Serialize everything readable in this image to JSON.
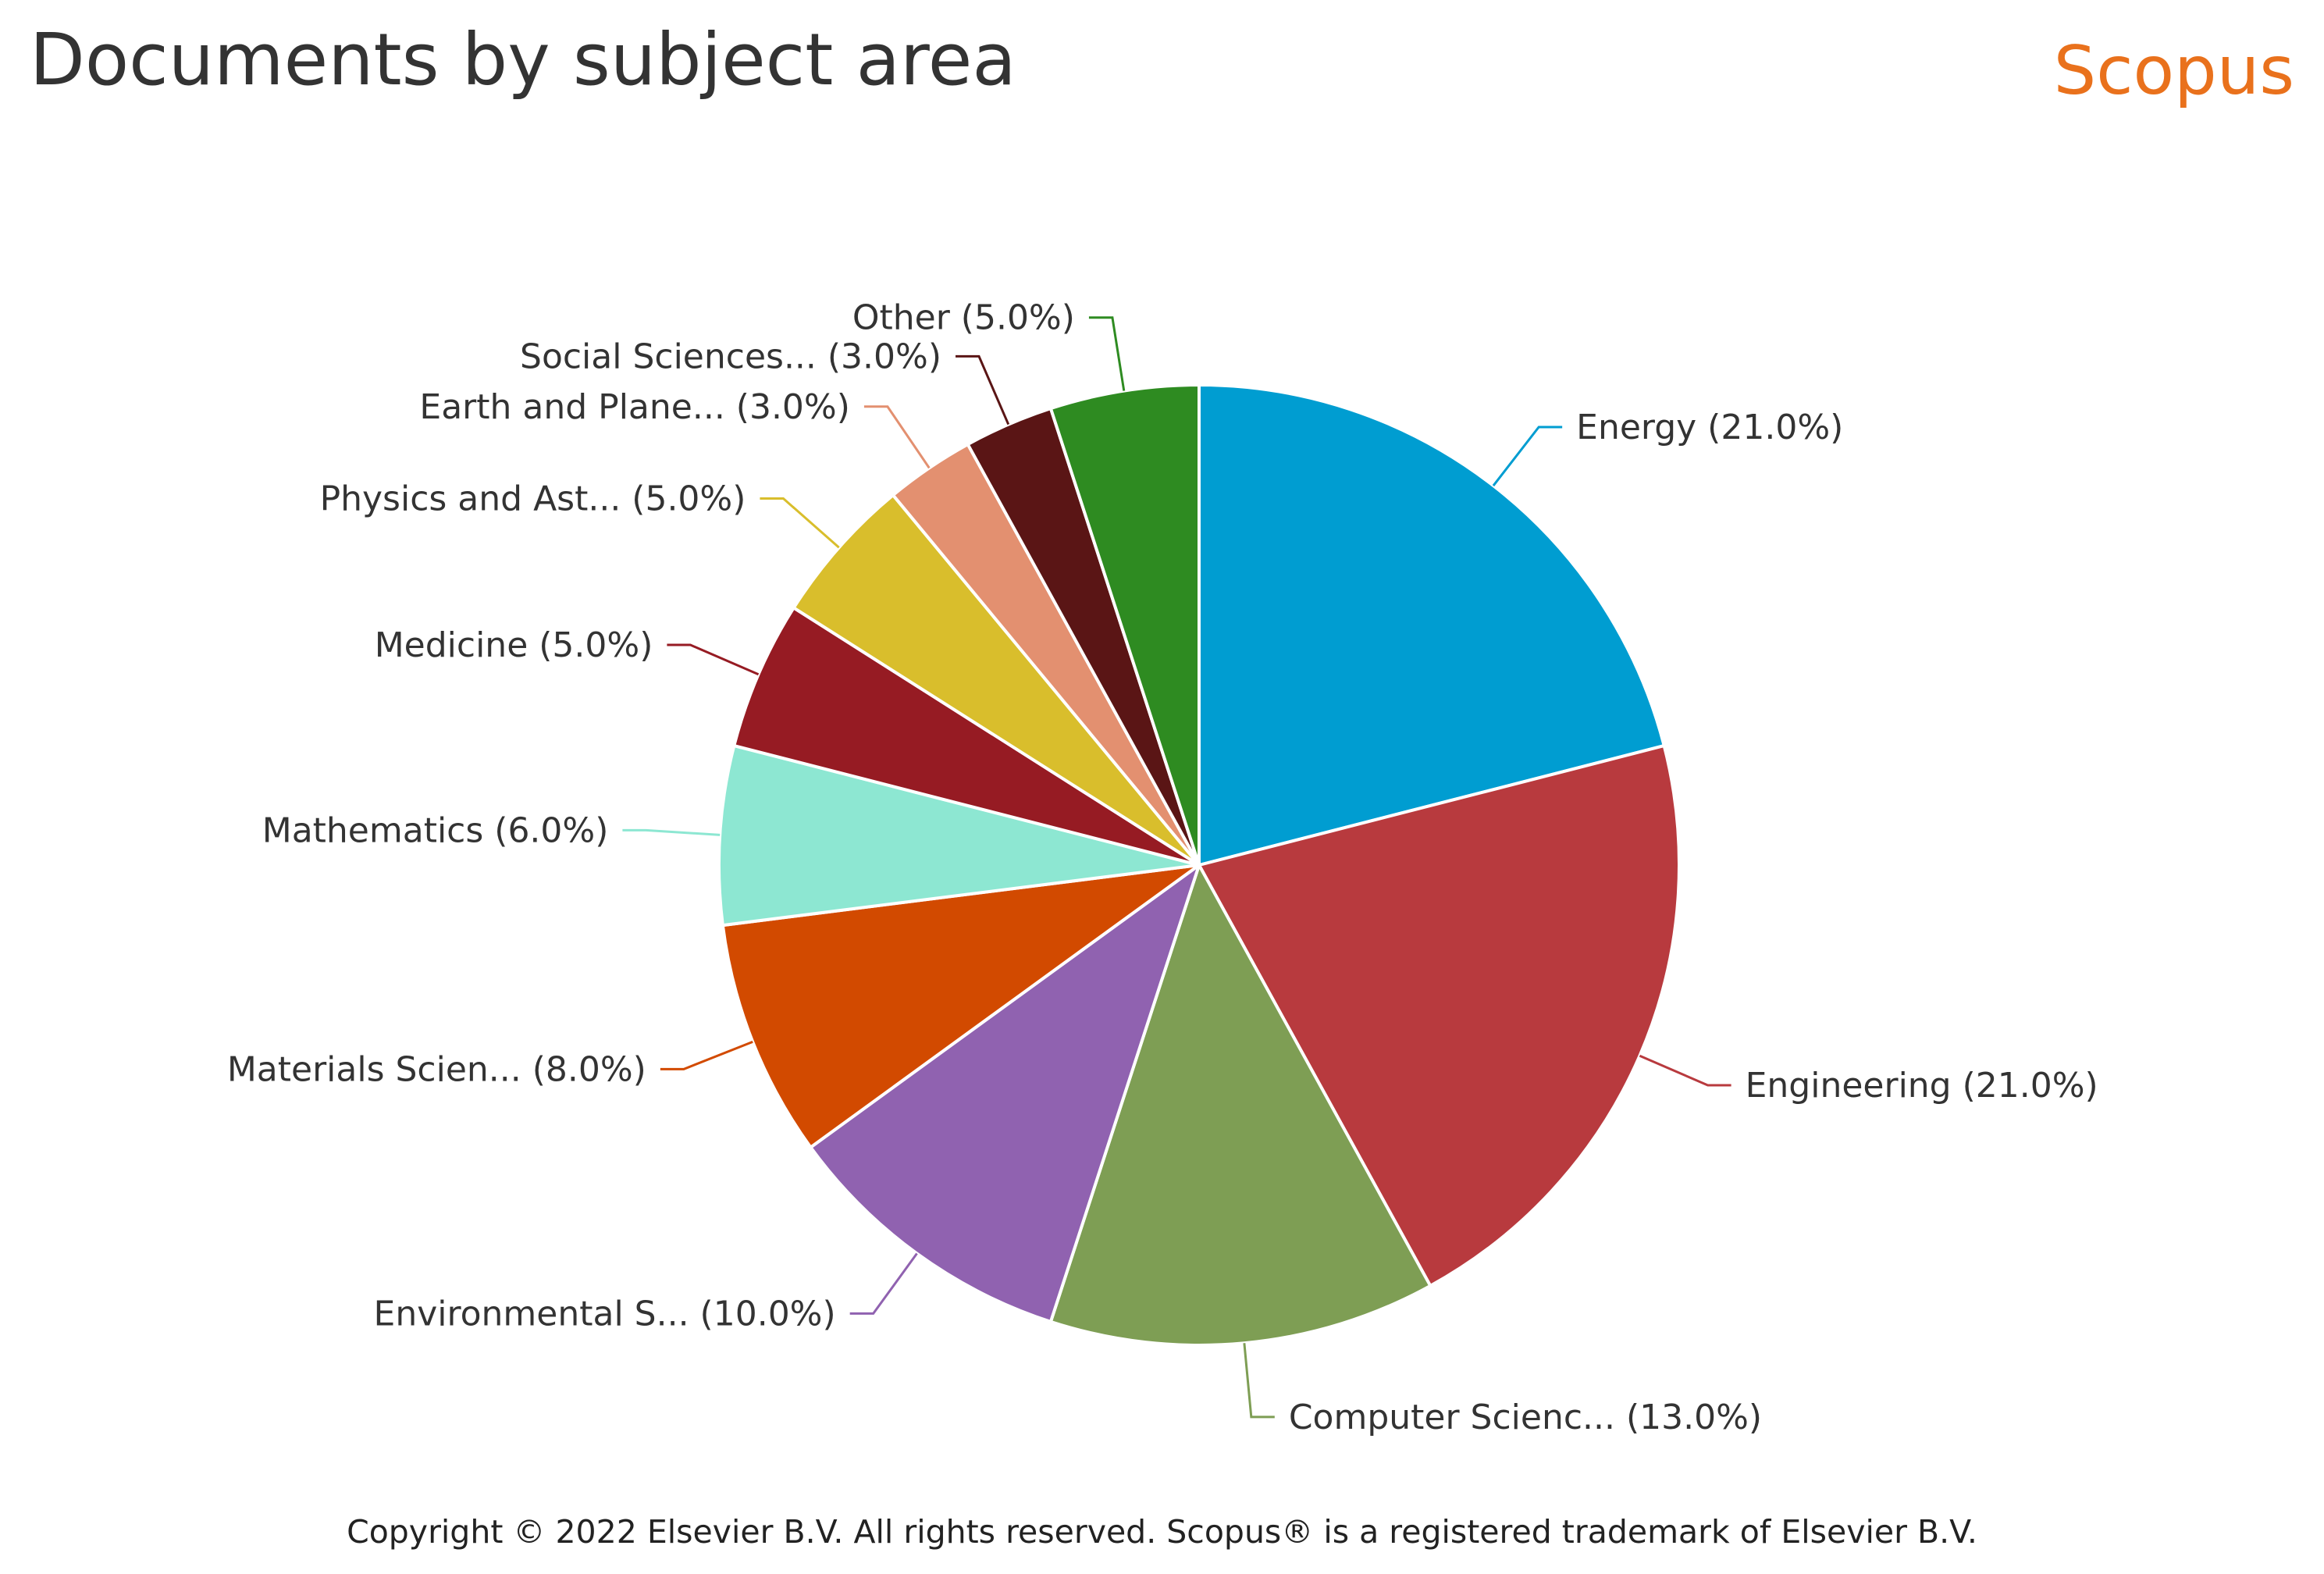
{
  "header": {
    "title": "Documents by subject area",
    "brand": "Scopus"
  },
  "chart_data": {
    "type": "pie",
    "title": "Documents by subject area",
    "start_angle_deg": 0,
    "direction": "clockwise",
    "slices": [
      {
        "label": "Energy (21.0%)",
        "value": 21.0,
        "color": "#009dd1"
      },
      {
        "label": "Engineering (21.0%)",
        "value": 21.0,
        "color": "#b83a3e"
      },
      {
        "label": "Computer Scienc... (13.0%)",
        "value": 13.0,
        "color": "#7e9e54"
      },
      {
        "label": "Environmental S... (10.0%)",
        "value": 10.0,
        "color": "#9062b0"
      },
      {
        "label": "Materials Scien... (8.0%)",
        "value": 8.0,
        "color": "#d24a00"
      },
      {
        "label": "Mathematics (6.0%)",
        "value": 6.0,
        "color": "#8de7d2"
      },
      {
        "label": "Medicine (5.0%)",
        "value": 5.0,
        "color": "#961b23"
      },
      {
        "label": "Physics and Ast... (5.0%)",
        "value": 5.0,
        "color": "#d9be2c"
      },
      {
        "label": "Earth and Plane... (3.0%)",
        "value": 3.0,
        "color": "#e39070"
      },
      {
        "label": "Social Sciences... (3.0%)",
        "value": 3.0,
        "color": "#5a1515"
      },
      {
        "label": "Other (5.0%)",
        "value": 5.0,
        "color": "#2e8b21"
      }
    ]
  },
  "footer": {
    "copyright": "Copyright © 2022 Elsevier B.V. All rights reserved. Scopus® is a registered trademark of Elsevier B.V."
  }
}
